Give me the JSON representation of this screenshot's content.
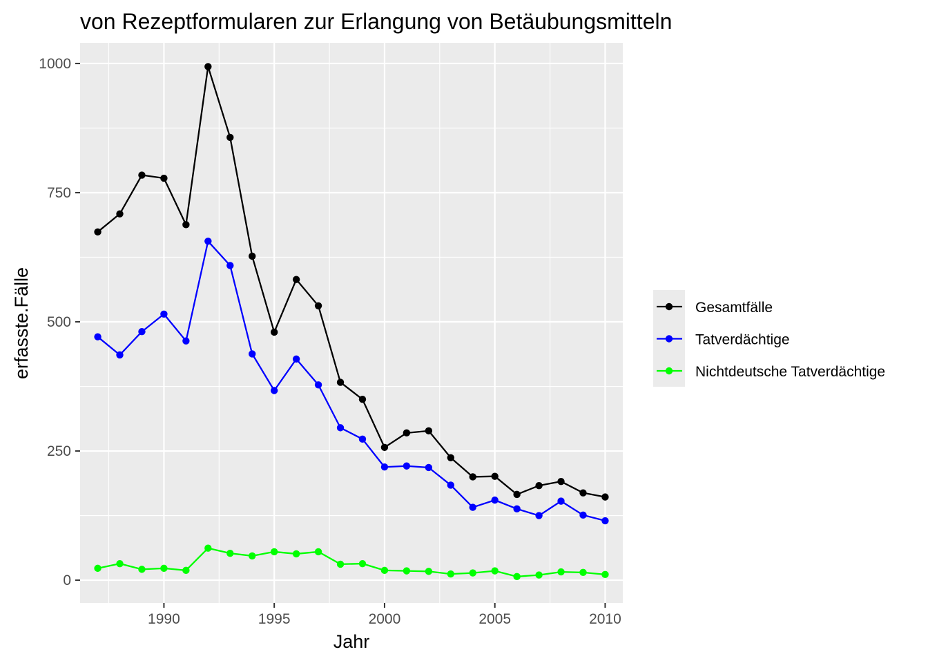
{
  "chart_data": {
    "type": "line",
    "title": "von Rezeptformularen zur Erlangung von Betäubungsmitteln",
    "xlabel": "Jahr",
    "ylabel": "erfasste.Fälle",
    "xlim": [
      1986.2,
      2010.8
    ],
    "ylim": [
      -44,
      1040
    ],
    "x_ticks": [
      1990,
      1995,
      2000,
      2005,
      2010
    ],
    "y_ticks": [
      0,
      250,
      500,
      750,
      1000
    ],
    "x_ticks_minor": [
      1987.5,
      1992.5,
      1997.5,
      2002.5,
      2007.5
    ],
    "y_ticks_minor": [
      125,
      375,
      625,
      875
    ],
    "grid": true,
    "legend_position": "right",
    "x": [
      1987,
      1988,
      1989,
      1990,
      1991,
      1992,
      1993,
      1994,
      1995,
      1996,
      1997,
      1998,
      1999,
      2000,
      2001,
      2002,
      2003,
      2004,
      2005,
      2006,
      2007,
      2008,
      2009,
      2010
    ],
    "series": [
      {
        "name": "Gesamtfälle",
        "color": "#000000",
        "values": [
          674,
          709,
          784,
          778,
          688,
          994,
          857,
          627,
          480,
          582,
          531,
          383,
          350,
          257,
          285,
          289,
          237,
          200,
          201,
          166,
          183,
          191,
          169,
          161
        ]
      },
      {
        "name": "Tatverdächtige",
        "color": "#0000ff",
        "values": [
          471,
          436,
          481,
          515,
          463,
          656,
          609,
          438,
          367,
          428,
          378,
          295,
          273,
          219,
          221,
          218,
          184,
          141,
          155,
          138,
          125,
          153,
          126,
          115
        ]
      },
      {
        "name": "Nichtdeutsche Tatverdächtige",
        "color": "#00ff00",
        "values": [
          23,
          32,
          21,
          23,
          19,
          62,
          52,
          47,
          55,
          51,
          55,
          31,
          32,
          19,
          18,
          17,
          12,
          14,
          18,
          7,
          10,
          16,
          15,
          11
        ]
      }
    ]
  }
}
